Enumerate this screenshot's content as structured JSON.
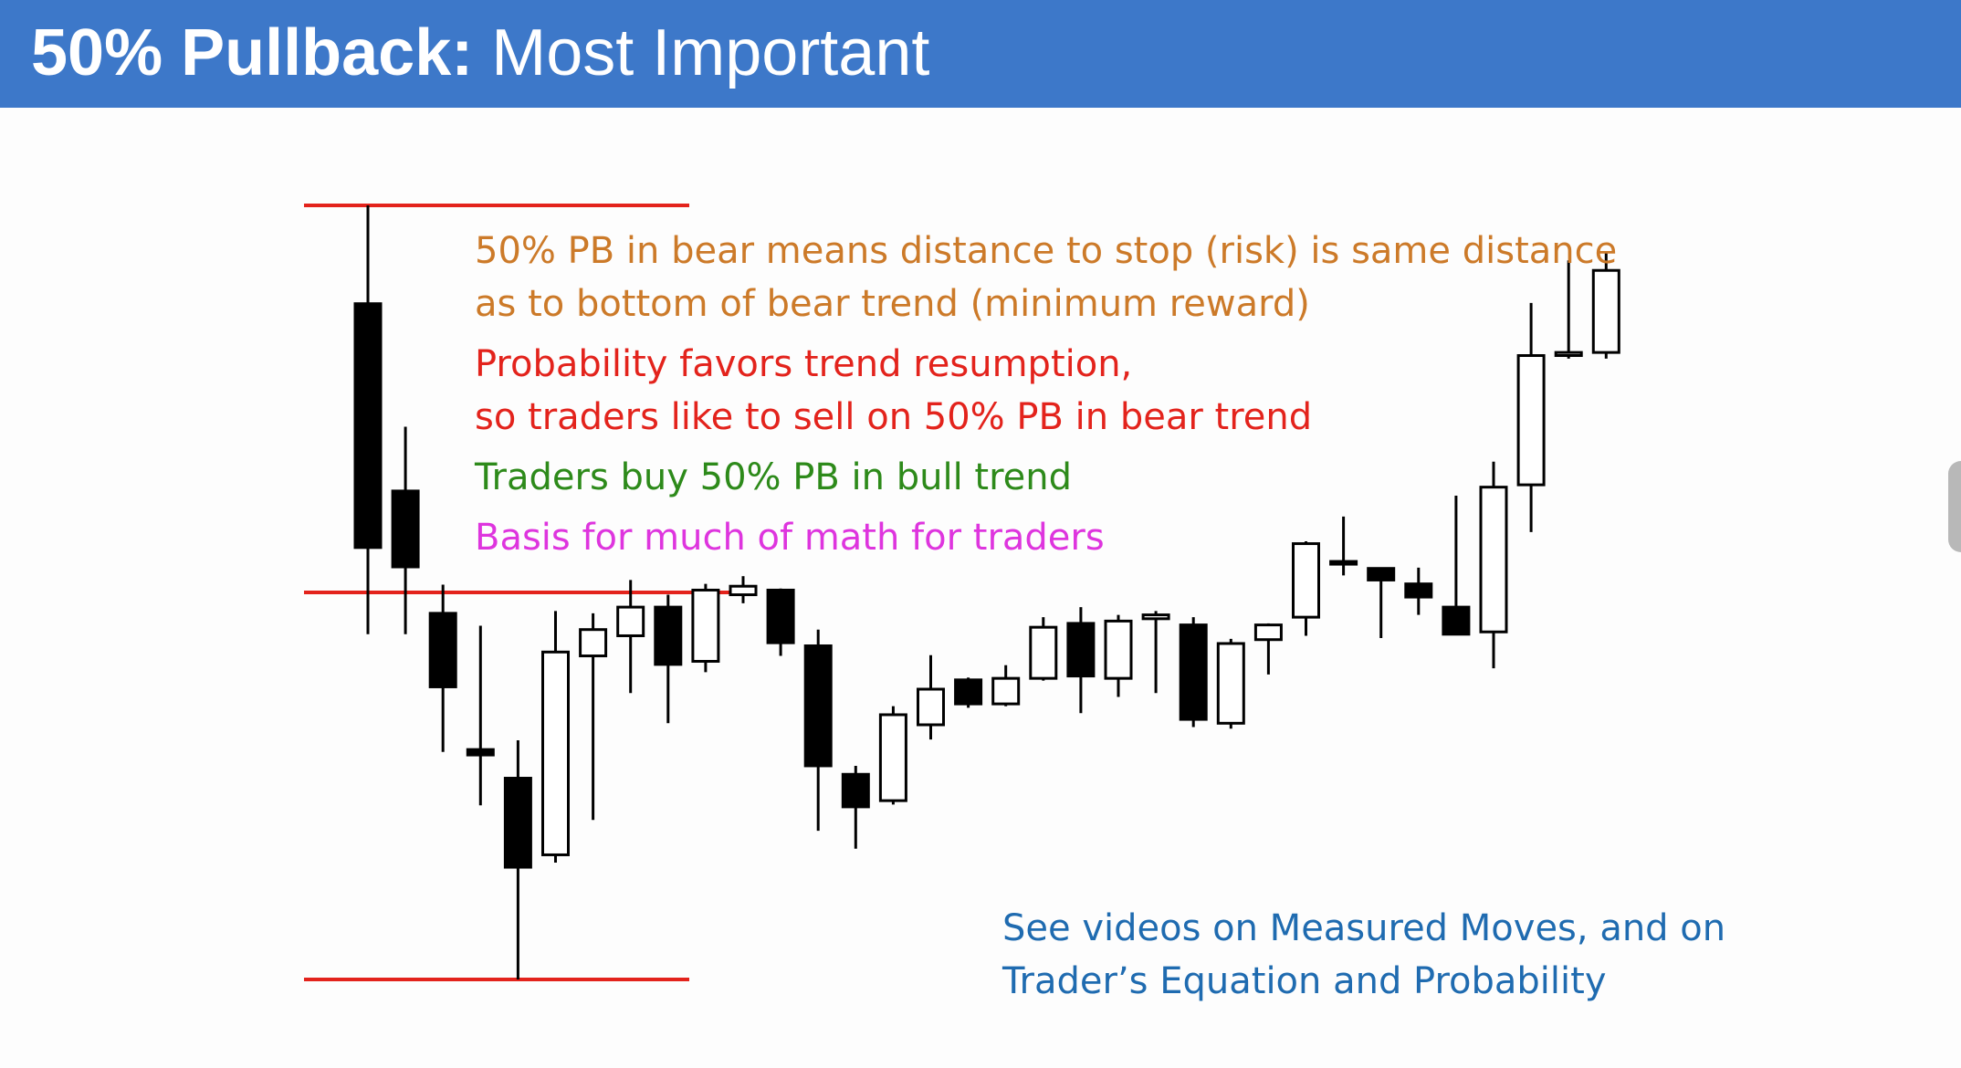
{
  "header": {
    "title_bold": "50% Pullback:",
    "title_rest": " Most Important"
  },
  "annotations": {
    "risk_line1": "50% PB in bear means distance to stop (risk) is same distance",
    "risk_line2": "as to bottom of bear trend (minimum reward)",
    "prob_line1": "Probability favors trend resumption,",
    "prob_line2": "so traders like to sell on 50% PB in bear trend",
    "bull": "Traders buy 50% PB in bull trend",
    "math": "Basis for much of math for traders",
    "videos_line1": "See videos on Measured Moves, and on",
    "videos_line2": "Trader’s Equation and Probability"
  },
  "colors": {
    "header_bg": "#3d78c9",
    "level_line": "#e3231c",
    "risk_text": "#cc7a29",
    "prob_text": "#e3231c",
    "bull_text": "#2d8a1a",
    "math_text": "#de35de",
    "videos_text": "#1f6bb0",
    "bear_candle": "#000000",
    "bull_candle": "#ffffff"
  },
  "chart_data": {
    "type": "candlestick",
    "title": "",
    "xlabel": "",
    "ylabel": "",
    "ylim": [
      0,
      100
    ],
    "levels": [
      {
        "role": "swing-high",
        "value": 100
      },
      {
        "role": "50-percent-pullback",
        "value": 50
      },
      {
        "role": "swing-low",
        "value": 0
      }
    ],
    "candles": [
      {
        "o": 87.3,
        "h": 100.0,
        "l": 44.6,
        "c": 55.8
      },
      {
        "o": 63.1,
        "h": 71.4,
        "l": 44.6,
        "c": 53.3
      },
      {
        "o": 47.3,
        "h": 51.0,
        "l": 29.4,
        "c": 37.8
      },
      {
        "o": 29.7,
        "h": 45.7,
        "l": 22.5,
        "c": 29.0
      },
      {
        "o": 26.0,
        "h": 30.9,
        "l": 0.0,
        "c": 14.5
      },
      {
        "o": 16.1,
        "h": 47.6,
        "l": 15.1,
        "c": 42.3
      },
      {
        "o": 41.8,
        "h": 47.3,
        "l": 20.6,
        "c": 45.2
      },
      {
        "o": 44.4,
        "h": 51.6,
        "l": 37.0,
        "c": 48.1
      },
      {
        "o": 48.1,
        "h": 49.7,
        "l": 33.1,
        "c": 40.7
      },
      {
        "o": 41.1,
        "h": 51.1,
        "l": 39.7,
        "c": 50.3
      },
      {
        "o": 49.7,
        "h": 52.1,
        "l": 48.6,
        "c": 50.8
      },
      {
        "o": 50.3,
        "h": 50.5,
        "l": 41.8,
        "c": 43.5
      },
      {
        "o": 43.1,
        "h": 45.2,
        "l": 19.2,
        "c": 27.6
      },
      {
        "o": 26.5,
        "h": 27.6,
        "l": 16.9,
        "c": 22.3
      },
      {
        "o": 23.1,
        "h": 35.3,
        "l": 22.6,
        "c": 34.2
      },
      {
        "o": 32.9,
        "h": 41.9,
        "l": 31.0,
        "c": 37.5
      },
      {
        "o": 38.7,
        "h": 39.0,
        "l": 35.1,
        "c": 35.6
      },
      {
        "o": 35.6,
        "h": 40.6,
        "l": 35.3,
        "c": 38.9
      },
      {
        "o": 38.9,
        "h": 46.8,
        "l": 38.6,
        "c": 45.5
      },
      {
        "o": 46.0,
        "h": 48.1,
        "l": 34.4,
        "c": 39.2
      },
      {
        "o": 38.9,
        "h": 47.1,
        "l": 36.5,
        "c": 46.3
      },
      {
        "o": 46.6,
        "h": 47.6,
        "l": 37.0,
        "c": 47.1
      },
      {
        "o": 45.8,
        "h": 46.8,
        "l": 32.6,
        "c": 33.6
      },
      {
        "o": 33.1,
        "h": 44.0,
        "l": 32.4,
        "c": 43.4
      },
      {
        "o": 43.9,
        "h": 46.0,
        "l": 39.4,
        "c": 45.8
      },
      {
        "o": 46.8,
        "h": 56.6,
        "l": 44.4,
        "c": 56.3
      },
      {
        "o": 54.0,
        "h": 59.8,
        "l": 52.2,
        "c": 54.0
      },
      {
        "o": 53.1,
        "h": 53.2,
        "l": 44.1,
        "c": 51.6
      },
      {
        "o": 51.1,
        "h": 53.2,
        "l": 47.1,
        "c": 49.4
      },
      {
        "o": 48.1,
        "h": 62.5,
        "l": 44.9,
        "c": 44.6
      },
      {
        "o": 44.9,
        "h": 66.9,
        "l": 40.2,
        "c": 63.6
      },
      {
        "o": 63.9,
        "h": 87.4,
        "l": 57.8,
        "c": 80.6
      },
      {
        "o": 80.6,
        "h": 92.9,
        "l": 80.2,
        "c": 81.0
      },
      {
        "o": 81.0,
        "h": 94.0,
        "l": 80.2,
        "c": 91.6
      }
    ]
  }
}
